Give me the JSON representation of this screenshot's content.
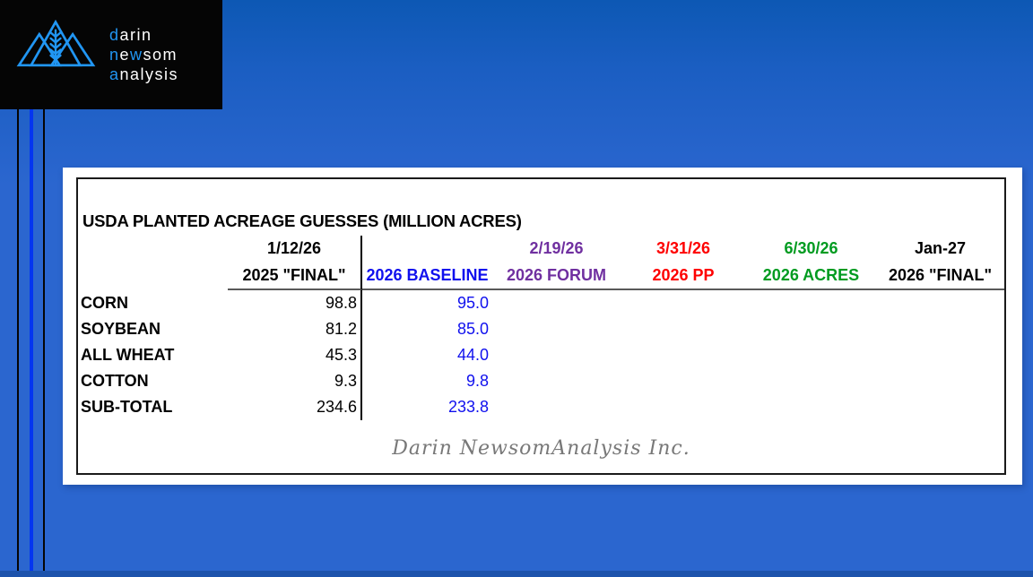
{
  "logo": {
    "company_initials": "dna",
    "accent_color": "#2196f3",
    "lines": [
      {
        "segments": [
          {
            "text": "d",
            "accent": true
          },
          {
            "text": "arin",
            "accent": false
          }
        ]
      },
      {
        "segments": [
          {
            "text": "n",
            "accent": true
          },
          {
            "text": "e",
            "accent": false
          },
          {
            "text": "w",
            "accent": true
          },
          {
            "text": "som",
            "accent": false
          }
        ]
      },
      {
        "segments": [
          {
            "text": "a",
            "accent": true
          },
          {
            "text": "nalysis",
            "accent": false
          }
        ]
      }
    ]
  },
  "colors": {
    "background_blue": "#2b66cf",
    "background_top_blue": "#0d58b4",
    "bottom_band_blue": "#1d53ac",
    "bright_stripe_blue": "#0435f0",
    "logo_accent": "#2196f3",
    "black": "#000000",
    "blue": "#1010ee",
    "purple": "#7030a0",
    "red": "#fe0000",
    "green": "#009b20",
    "underline_gray": "#595959",
    "footer_gray": "#787878"
  },
  "chart_data": {
    "type": "table",
    "title": "USDA PLANTED ACREAGE GUESSES (MILLION ACRES)",
    "footer": "Darin NewsomAnalysis Inc.",
    "header_dates": [
      "",
      "1/12/26",
      "",
      "2/19/26",
      "3/31/26",
      "6/30/26",
      "Jan-27"
    ],
    "header_labels": [
      "",
      "2025 \"FINAL\"",
      "2026 BASELINE",
      "2026 FORUM",
      "2026 PP",
      "2026 ACRES",
      "2026 \"FINAL\""
    ],
    "column_colors": [
      "black",
      "black",
      "blue",
      "purple",
      "red",
      "green",
      "black"
    ],
    "rows": [
      {
        "commodity": "CORN",
        "values": [
          "98.8",
          "95.0",
          "",
          "",
          "",
          ""
        ]
      },
      {
        "commodity": "SOYBEAN",
        "values": [
          "81.2",
          "85.0",
          "",
          "",
          "",
          ""
        ]
      },
      {
        "commodity": "ALL WHEAT",
        "values": [
          "45.3",
          "44.0",
          "",
          "",
          "",
          ""
        ]
      },
      {
        "commodity": "COTTON",
        "values": [
          "9.3",
          "9.8",
          "",
          "",
          "",
          ""
        ]
      },
      {
        "commodity": "SUB-TOTAL",
        "values": [
          "234.6",
          "233.8",
          "",
          "",
          "",
          ""
        ]
      }
    ],
    "value_colors_by_column": [
      "black",
      "blue",
      "purple",
      "red",
      "green",
      "black"
    ]
  }
}
